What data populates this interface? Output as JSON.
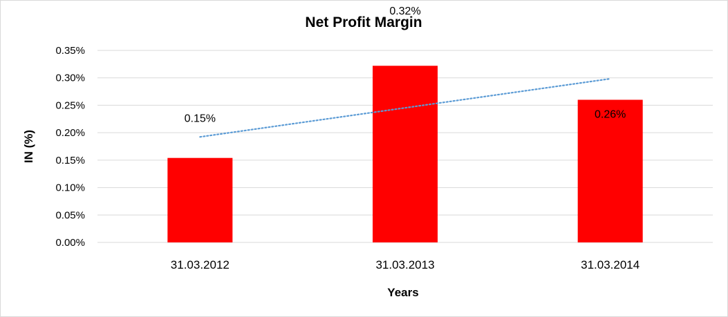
{
  "chart_data": {
    "type": "bar",
    "title": "Net Profit Margin",
    "xlabel": "Years",
    "ylabel": "IN (%)",
    "categories": [
      "31.03.2012",
      "31.03.2013",
      "31.03.2014"
    ],
    "values": [
      0.154,
      0.322,
      0.26
    ],
    "data_labels": [
      "0.15%",
      "0.32%",
      "0.26%"
    ],
    "ylim": [
      0,
      0.35
    ],
    "yticks": [
      0,
      0.05,
      0.1,
      0.15,
      0.2,
      0.25,
      0.3,
      0.35
    ],
    "ytick_labels": [
      "0.00%",
      "0.05%",
      "0.10%",
      "0.15%",
      "0.20%",
      "0.25%",
      "0.30%",
      "0.35%"
    ],
    "grid": true,
    "legend": "none",
    "trendline": {
      "type": "linear",
      "style": "dotted",
      "color": "#5b9bd5"
    },
    "colors": {
      "bar": "#ff0000",
      "gridline": "#d9d9d9"
    }
  }
}
